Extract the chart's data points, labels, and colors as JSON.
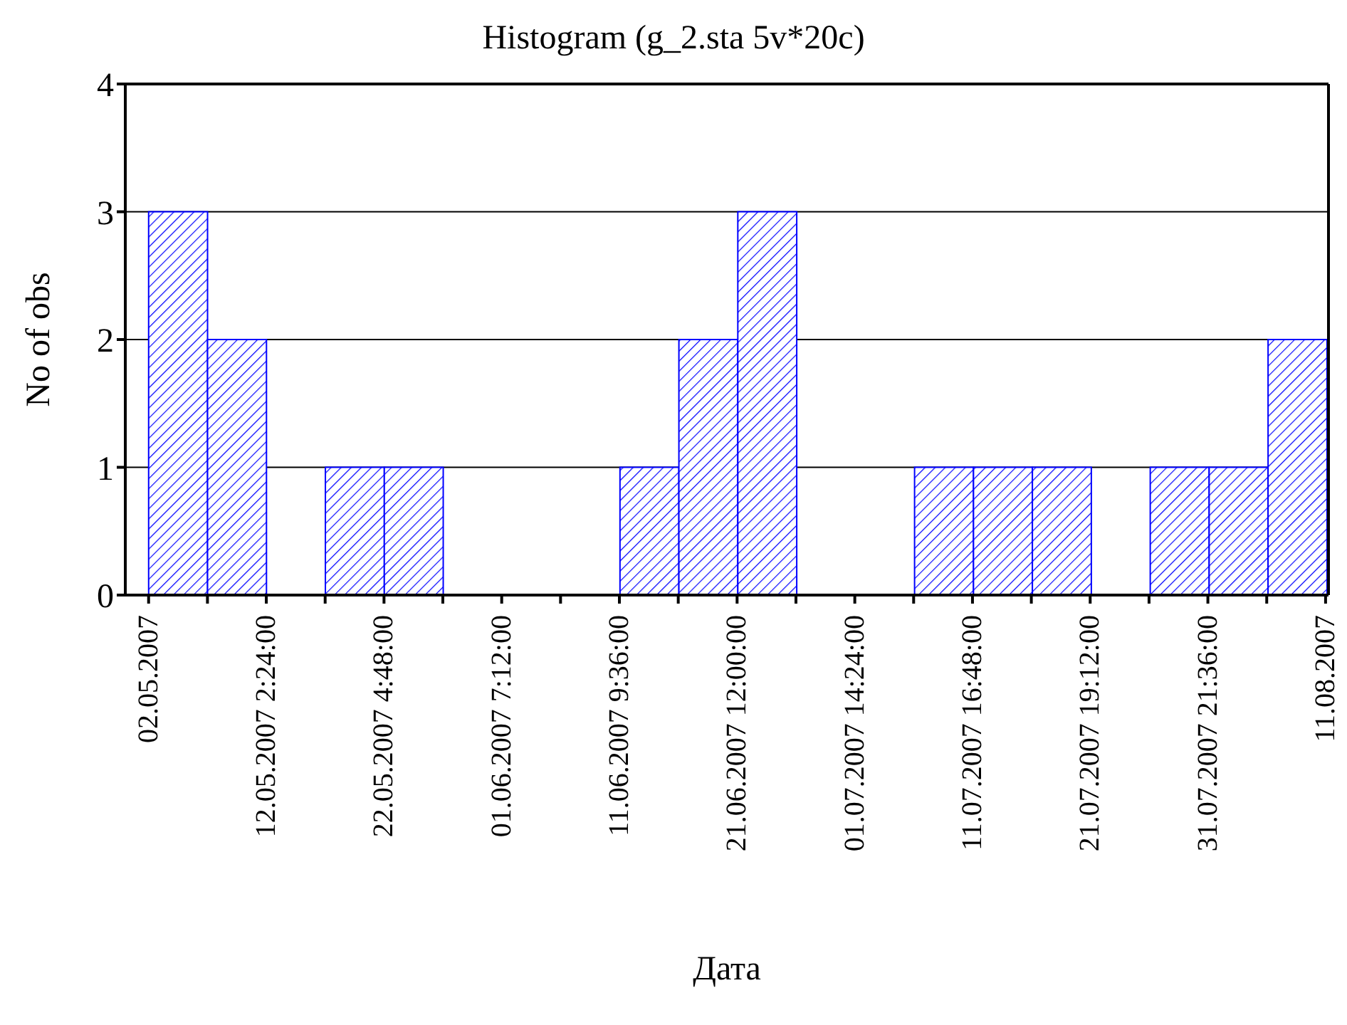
{
  "chart_data": {
    "type": "histogram",
    "title": "Histogram (g_2.sta 5v*20c)",
    "xlabel": "Дата",
    "ylabel": "No of obs",
    "bins": [
      "2007-05-02T00:00",
      "2007-05-07T01:12",
      "2007-05-12T02:24",
      "2007-05-17T03:36",
      "2007-05-22T04:48",
      "2007-05-27T06:00",
      "2007-06-01T07:12",
      "2007-06-06T08:24",
      "2007-06-11T09:36",
      "2007-06-16T10:48",
      "2007-06-21T12:00",
      "2007-06-26T13:12",
      "2007-07-01T14:24",
      "2007-07-06T15:36",
      "2007-07-11T16:48",
      "2007-07-16T18:00",
      "2007-07-21T19:12",
      "2007-07-26T20:24",
      "2007-07-31T21:36",
      "2007-08-05T22:48",
      "2007-08-11T00:00"
    ],
    "values": [
      3,
      2,
      0,
      1,
      1,
      0,
      0,
      0,
      1,
      2,
      3,
      0,
      0,
      1,
      1,
      1,
      0,
      1,
      1,
      2
    ],
    "color": "#0000ff",
    "xlim": [
      "2007-04-30",
      "2007-08-11T06:00"
    ],
    "xticks": [
      {
        "value": "2007-05-02T00:00",
        "label": "02.05.2007"
      },
      {
        "value": "2007-05-07T01:12",
        "label": null
      },
      {
        "value": "2007-05-12T02:24",
        "label": "12.05.2007 2:24:00"
      },
      {
        "value": "2007-05-17T03:36",
        "label": null
      },
      {
        "value": "2007-05-22T04:48",
        "label": "22.05.2007 4:48:00"
      },
      {
        "value": "2007-05-27T06:00",
        "label": null
      },
      {
        "value": "2007-06-01T07:12",
        "label": "01.06.2007 7:12:00"
      },
      {
        "value": "2007-06-06T08:24",
        "label": null
      },
      {
        "value": "2007-06-11T09:36",
        "label": "11.06.2007 9:36:00"
      },
      {
        "value": "2007-06-16T10:48",
        "label": null
      },
      {
        "value": "2007-06-21T12:00",
        "label": "21.06.2007 12:00:00"
      },
      {
        "value": "2007-06-26T13:12",
        "label": null
      },
      {
        "value": "2007-07-01T14:24",
        "label": "01.07.2007 14:24:00"
      },
      {
        "value": "2007-07-06T15:36",
        "label": null
      },
      {
        "value": "2007-07-11T16:48",
        "label": "11.07.2007 16:48:00"
      },
      {
        "value": "2007-07-16T18:00",
        "label": null
      },
      {
        "value": "2007-07-21T19:12",
        "label": "21.07.2007 19:12:00"
      },
      {
        "value": "2007-07-26T20:24",
        "label": null
      },
      {
        "value": "2007-07-31T21:36",
        "label": "31.07.2007 21:36:00"
      },
      {
        "value": "2007-08-05T22:48",
        "label": null
      },
      {
        "value": "2007-08-11T00:00",
        "label": "11.08.2007"
      }
    ],
    "ylim": [
      0,
      4
    ],
    "yticks": [
      0,
      1,
      2,
      3,
      4
    ],
    "grid": "y"
  }
}
